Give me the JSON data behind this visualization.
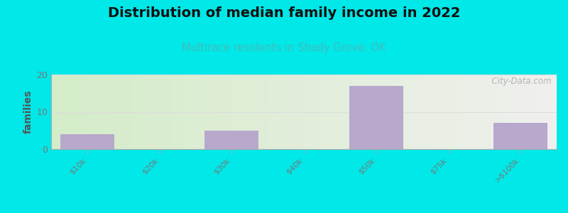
{
  "title": "Distribution of median family income in 2022",
  "subtitle": "Multirace residents in Shady Grove, OK",
  "categories": [
    "$10k",
    "$20k",
    "$30k",
    "$40k",
    "$50k",
    "$75k",
    ">$100k"
  ],
  "values": [
    4,
    0,
    5,
    0,
    17,
    0,
    7
  ],
  "bar_color": "#b8a8cc",
  "bar_width": 0.75,
  "ylim": [
    0,
    20
  ],
  "yticks": [
    0,
    10,
    20
  ],
  "ylabel": "families",
  "background_color": "#00e8e8",
  "plot_bg_left": "#d4ecc8",
  "plot_bg_right": "#f0f0ee",
  "title_fontsize": 14,
  "subtitle_fontsize": 10.5,
  "subtitle_color": "#44bbbb",
  "ylabel_color": "#555555",
  "tick_color": "#777777",
  "grid_color": "#dddddd",
  "watermark": "  City-Data.com"
}
